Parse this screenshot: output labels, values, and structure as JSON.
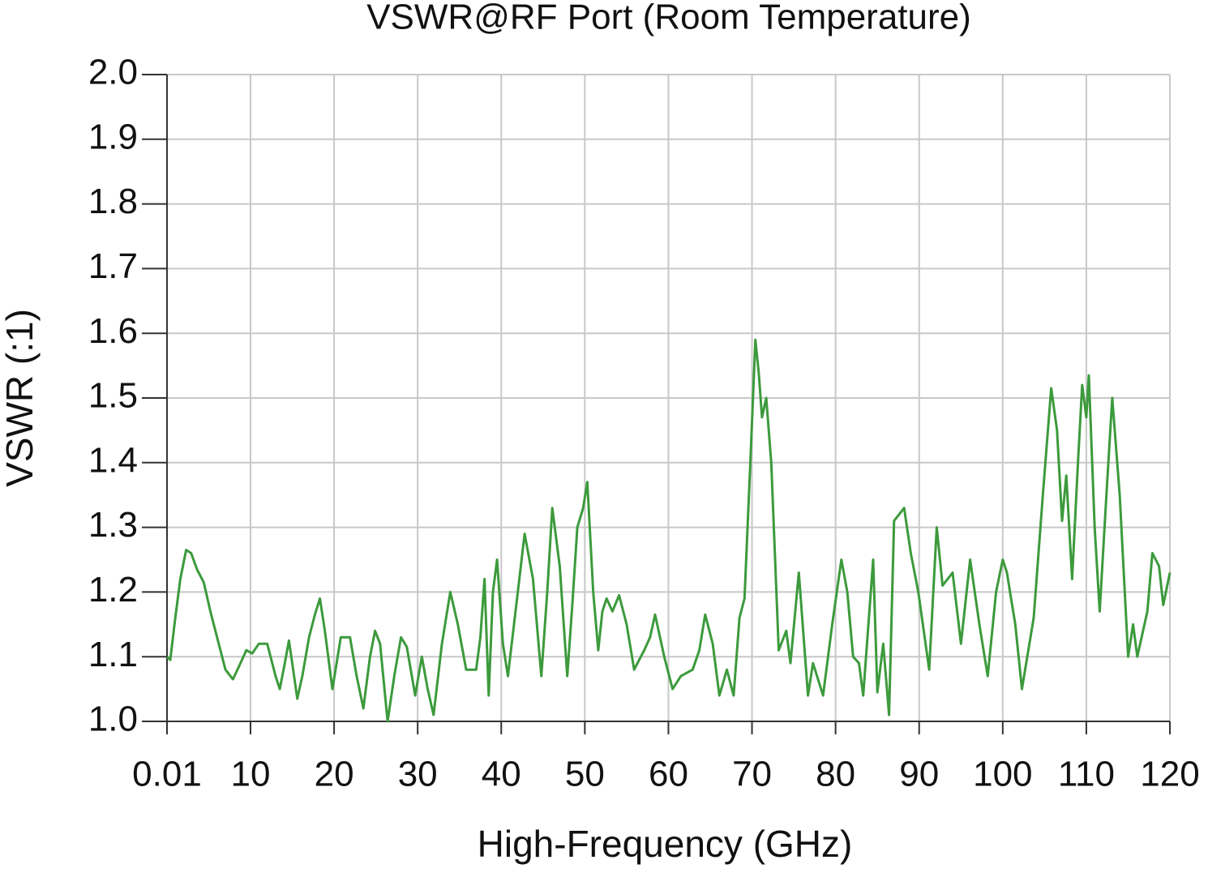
{
  "chart_data": {
    "type": "line",
    "title": "VSWR@RF Port (Room Temperature)",
    "x_label": "High-Frequency (GHz)",
    "y_label": "VSWR (:1)",
    "xlim": [
      0.01,
      120
    ],
    "ylim": [
      1.0,
      2.0
    ],
    "xticks": [
      0.01,
      10,
      20,
      30,
      40,
      50,
      60,
      70,
      80,
      90,
      100,
      110,
      120
    ],
    "yticks": [
      {
        "value": 1.0,
        "label": "1.0"
      },
      1.1,
      1.2,
      1.3,
      1.4,
      1.5,
      1.6,
      1.7,
      1.8,
      1.9,
      {
        "value": 2.0,
        "label": "2.0"
      }
    ],
    "grid": true,
    "series": [
      {
        "name": "VSWR",
        "color": "#3c9a3c",
        "x": [
          0.01,
          0.4,
          1.0,
          1.6,
          2.3,
          2.9,
          3.6,
          4.4,
          5.2,
          6.2,
          7.0,
          7.9,
          8.8,
          9.5,
          10.2,
          11.0,
          12.0,
          13.0,
          13.5,
          14.1,
          14.6,
          15.1,
          15.6,
          16.2,
          17.0,
          17.7,
          18.3,
          18.9,
          19.8,
          20.3,
          20.8,
          21.4,
          21.9,
          22.7,
          23.5,
          24.3,
          24.9,
          25.5,
          26.4,
          27.2,
          28.0,
          28.7,
          29.7,
          30.5,
          31.2,
          31.9,
          32.9,
          33.9,
          34.8,
          35.8,
          37.0,
          37.5,
          38.0,
          38.5,
          39.0,
          39.5,
          40.2,
          40.8,
          41.8,
          42.8,
          43.8,
          44.8,
          45.5,
          46.1,
          47.0,
          47.9,
          48.5,
          49.1,
          49.8,
          50.3,
          51.0,
          51.6,
          52.1,
          52.6,
          53.3,
          54.1,
          55.0,
          55.9,
          57.1,
          57.8,
          58.4,
          59.5,
          60.5,
          61.5,
          62.9,
          63.7,
          64.4,
          65.3,
          66.1,
          67.0,
          67.8,
          68.5,
          69.1,
          69.8,
          70.4,
          70.8,
          71.2,
          71.7,
          72.3,
          73.2,
          74.1,
          74.6,
          75.6,
          76.7,
          77.3,
          78.5,
          79.6,
          80.7,
          81.4,
          82.1,
          82.8,
          83.3,
          84.5,
          85.0,
          85.7,
          86.4,
          87.0,
          88.2,
          89.0,
          89.9,
          91.2,
          92.1,
          92.8,
          94.0,
          95.0,
          96.1,
          97.2,
          98.2,
          99.2,
          100.0,
          100.5,
          101.0,
          101.5,
          102.3,
          103.7,
          104.8,
          105.8,
          106.5,
          107.1,
          107.6,
          108.3,
          109.0,
          109.5,
          110.0,
          110.3,
          111.0,
          111.6,
          112.4,
          113.1,
          114.0,
          115.0,
          115.6,
          116.1,
          117.3,
          117.9,
          118.7,
          119.2,
          120.0
        ],
        "values": [
          1.1,
          1.095,
          1.16,
          1.22,
          1.265,
          1.26,
          1.235,
          1.215,
          1.17,
          1.12,
          1.08,
          1.065,
          1.09,
          1.11,
          1.105,
          1.12,
          1.12,
          1.07,
          1.05,
          1.09,
          1.125,
          1.08,
          1.035,
          1.07,
          1.13,
          1.165,
          1.19,
          1.14,
          1.05,
          1.09,
          1.13,
          1.13,
          1.13,
          1.07,
          1.02,
          1.1,
          1.14,
          1.12,
          1.0,
          1.07,
          1.13,
          1.115,
          1.04,
          1.1,
          1.05,
          1.01,
          1.12,
          1.2,
          1.15,
          1.08,
          1.08,
          1.13,
          1.22,
          1.04,
          1.2,
          1.25,
          1.12,
          1.07,
          1.18,
          1.29,
          1.22,
          1.07,
          1.2,
          1.33,
          1.24,
          1.07,
          1.18,
          1.3,
          1.33,
          1.37,
          1.2,
          1.11,
          1.17,
          1.19,
          1.17,
          1.195,
          1.15,
          1.08,
          1.11,
          1.13,
          1.165,
          1.1,
          1.05,
          1.07,
          1.08,
          1.11,
          1.165,
          1.12,
          1.04,
          1.08,
          1.04,
          1.16,
          1.19,
          1.4,
          1.59,
          1.54,
          1.47,
          1.5,
          1.4,
          1.11,
          1.14,
          1.09,
          1.23,
          1.04,
          1.09,
          1.04,
          1.15,
          1.25,
          1.2,
          1.1,
          1.09,
          1.04,
          1.25,
          1.045,
          1.12,
          1.01,
          1.31,
          1.33,
          1.26,
          1.2,
          1.08,
          1.3,
          1.21,
          1.23,
          1.12,
          1.25,
          1.15,
          1.07,
          1.2,
          1.25,
          1.23,
          1.19,
          1.15,
          1.05,
          1.16,
          1.35,
          1.515,
          1.45,
          1.31,
          1.38,
          1.22,
          1.4,
          1.52,
          1.47,
          1.535,
          1.3,
          1.17,
          1.35,
          1.5,
          1.35,
          1.1,
          1.15,
          1.1,
          1.17,
          1.26,
          1.24,
          1.18,
          1.23
        ]
      }
    ]
  }
}
